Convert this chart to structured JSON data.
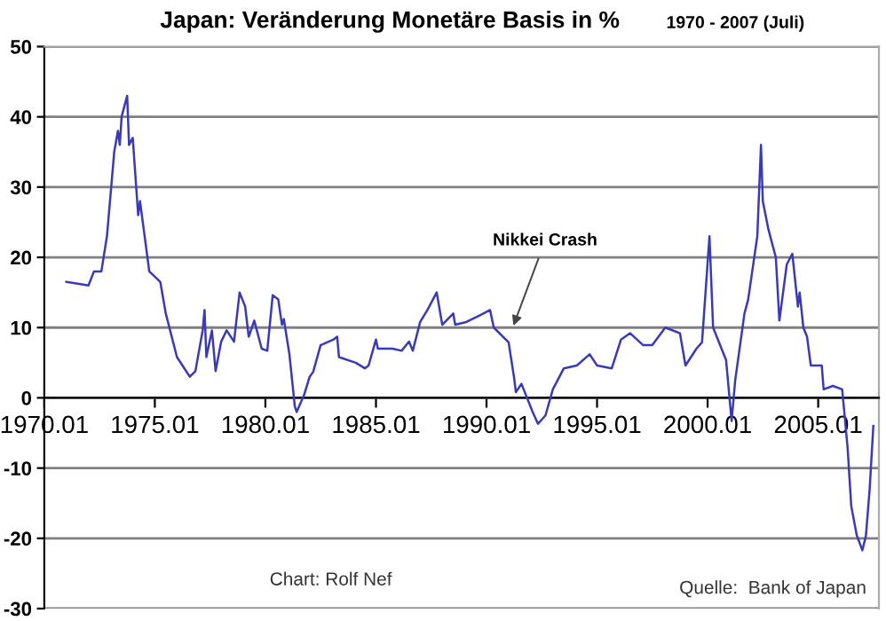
{
  "chart_data": {
    "type": "line",
    "title": "Japan: Veränderung Monetäre Basis in %",
    "subtitle": "1970 - 2007 (Juli)",
    "annotations": [
      "Nikkei Crash",
      "Chart: Rolf Nef",
      "Quelle:  Bank of Japan"
    ],
    "x": [
      "1971-01",
      "1972-01",
      "1972-04",
      "1972-08",
      "1972-11",
      "1973-03",
      "1973-05",
      "1973-06",
      "1973-07",
      "1973-10",
      "1973-11",
      "1974-01",
      "1974-04",
      "1974-05",
      "1974-10",
      "1975-02",
      "1975-04",
      "1975-07",
      "1976-01",
      "1976-04",
      "1976-08",
      "1976-11",
      "1977-03",
      "1977-04",
      "1977-05",
      "1977-08",
      "1977-10",
      "1978-01",
      "1978-04",
      "1978-08",
      "1978-11",
      "1979-02",
      "1979-04",
      "1979-07",
      "1979-11",
      "1980-02",
      "1980-05",
      "1980-08",
      "1980-10",
      "1980-11",
      "1981-02",
      "1981-05",
      "1981-06",
      "1981-10",
      "1982-01",
      "1982-03",
      "1982-07",
      "1983-02",
      "1983-04",
      "1983-05",
      "1984-02",
      "1984-07",
      "1984-09",
      "1985-01",
      "1985-02",
      "1985-10",
      "1986-03",
      "1986-07",
      "1986-09",
      "1987-01",
      "1987-05",
      "1987-10",
      "1988-01",
      "1988-07",
      "1988-08",
      "1989-02",
      "1989-09",
      "1990-03",
      "1990-05",
      "1991-01",
      "1991-04",
      "1991-05",
      "1991-08",
      "1992-02",
      "1992-05",
      "1992-09",
      "1993-01",
      "1993-07",
      "1994-02",
      "1994-09",
      "1995-01",
      "1995-09",
      "1996-02",
      "1996-07",
      "1997-02",
      "1997-07",
      "1998-02",
      "1998-10",
      "1999-01",
      "1999-07",
      "1999-10",
      "2000-02",
      "2000-04",
      "2000-11",
      "2001-02",
      "2001-04",
      "2001-09",
      "2001-11",
      "2002-04",
      "2002-06",
      "2002-07",
      "2002-10",
      "2003-02",
      "2003-04",
      "2003-08",
      "2003-11",
      "2004-02",
      "2004-03",
      "2004-05",
      "2004-07",
      "2004-09",
      "2005-03",
      "2005-04",
      "2005-09",
      "2006-02",
      "2006-05",
      "2006-07",
      "2006-10",
      "2007-01",
      "2007-03",
      "2007-05",
      "2007-07"
    ],
    "series": [
      {
        "color": "#3a3ab8",
        "values": [
          16.5,
          16,
          18,
          18,
          23,
          35,
          38,
          36,
          40,
          43,
          36,
          37,
          26,
          28,
          18,
          17,
          16.5,
          12,
          5.8,
          4.6,
          3,
          3.8,
          9.6,
          12.5,
          5.8,
          9.6,
          3.8,
          8,
          9.6,
          8,
          15,
          13,
          8.7,
          11,
          7,
          6.7,
          14.6,
          14,
          10.4,
          11.2,
          6.2,
          -1.2,
          -2,
          0.4,
          3,
          3.7,
          7.5,
          8.3,
          8.7,
          5.8,
          5,
          4.2,
          4.6,
          8.3,
          7,
          7,
          6.7,
          8,
          6.7,
          10.8,
          12.5,
          15,
          10.4,
          12,
          10.4,
          10.8,
          11.7,
          12.5,
          10,
          7.9,
          2.9,
          0.8,
          2,
          -2,
          -3.7,
          -2.5,
          1.2,
          4.2,
          4.6,
          6.2,
          4.6,
          4.2,
          8.3,
          9.2,
          7.5,
          7.5,
          10,
          9.2,
          4.6,
          7,
          7.9,
          23,
          10,
          5.4,
          -3.3,
          2.5,
          12,
          14,
          23,
          36,
          28,
          24,
          20,
          11,
          19,
          20.5,
          13,
          15,
          10,
          8.7,
          4.6,
          4.6,
          1.2,
          1.7,
          1.2,
          -7,
          -15.4,
          -19.6,
          -21.7,
          -19.6,
          -13,
          -4
        ]
      }
    ],
    "xlim": [
      "1970-01",
      "2007-10"
    ],
    "ylim": [
      -30,
      50
    ],
    "xticks": [
      {
        "value": "1970-01",
        "label": "1970.01"
      },
      {
        "value": "1975-01",
        "label": "1975.01"
      },
      {
        "value": "1980-01",
        "label": "1980.01"
      },
      {
        "value": "1985-01",
        "label": "1985.01"
      },
      {
        "value": "1990-01",
        "label": "1990.01"
      },
      {
        "value": "1995-01",
        "label": "1995.01"
      },
      {
        "value": "2000-01",
        "label": "2000.01"
      },
      {
        "value": "2005-01",
        "label": "2005.01"
      }
    ],
    "yticks": [
      -30,
      -20,
      -10,
      0,
      10,
      20,
      30,
      40,
      50
    ],
    "grid": "y",
    "legend": false,
    "marker": "none",
    "line_style": "solid"
  }
}
